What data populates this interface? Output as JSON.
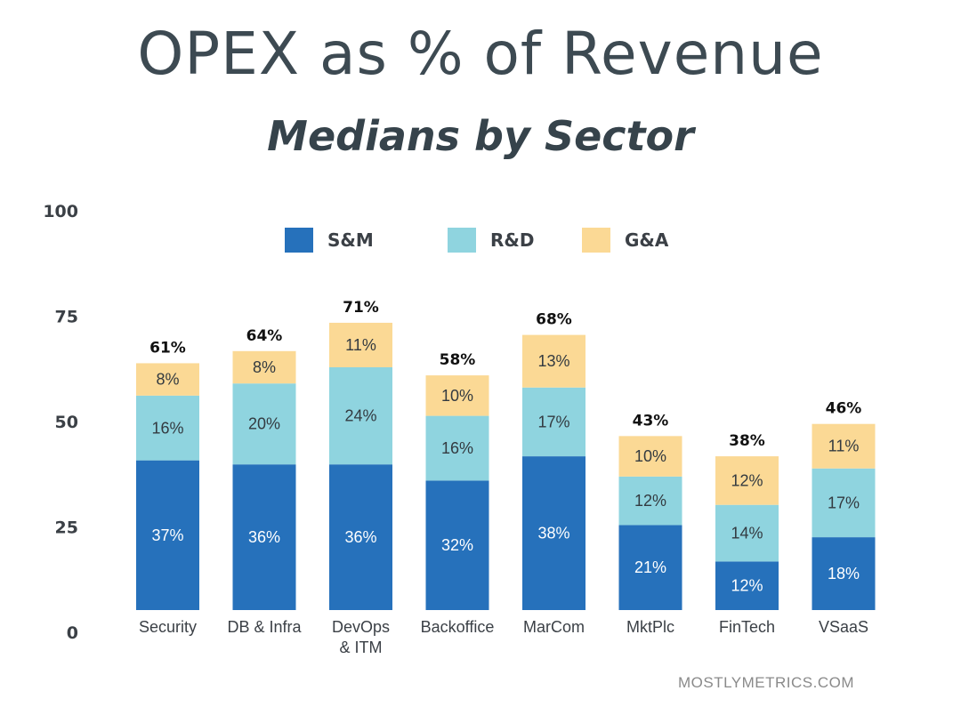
{
  "header": {
    "title": "OPEX as % of Revenue",
    "subtitle": "Medians by Sector"
  },
  "source": "MOSTLYMETRICS.COM",
  "chart_data": {
    "type": "bar",
    "stacked": true,
    "title": "OPEX as % of Revenue",
    "subtitle": "Medians by Sector",
    "categories": [
      [
        "Security"
      ],
      [
        "DB & Infra"
      ],
      [
        "DevOps",
        "& ITM"
      ],
      [
        "Backoffice"
      ],
      [
        "MarCom"
      ],
      [
        "MktPlc"
      ],
      [
        "FinTech"
      ],
      [
        "VSaaS"
      ]
    ],
    "series": [
      {
        "name": "S&M",
        "color": "#2671bb",
        "values": [
          37,
          36,
          36,
          32,
          38,
          21,
          12,
          18
        ],
        "labels": [
          "37%",
          "36%",
          "36%",
          "32%",
          "38%",
          "21%",
          "12%",
          "18%"
        ]
      },
      {
        "name": "R&D",
        "color": "#8fd4df",
        "values": [
          16,
          20,
          24,
          16,
          17,
          12,
          14,
          17
        ],
        "labels": [
          "16%",
          "20%",
          "24%",
          "16%",
          "17%",
          "12%",
          "14%",
          "17%"
        ]
      },
      {
        "name": "G&A",
        "color": "#fbd995",
        "values": [
          8,
          8,
          11,
          10,
          13,
          10,
          12,
          11
        ],
        "labels": [
          "8%",
          "8%",
          "11%",
          "10%",
          "13%",
          "10%",
          "12%",
          "11%"
        ]
      }
    ],
    "totals": [
      "61%",
      "64%",
      "71%",
      "58%",
      "68%",
      "43%",
      "38%",
      "46%"
    ],
    "yticks": [
      0,
      25,
      50,
      75,
      100
    ],
    "ylim": [
      0,
      100
    ],
    "legend": "top",
    "grid": false
  }
}
